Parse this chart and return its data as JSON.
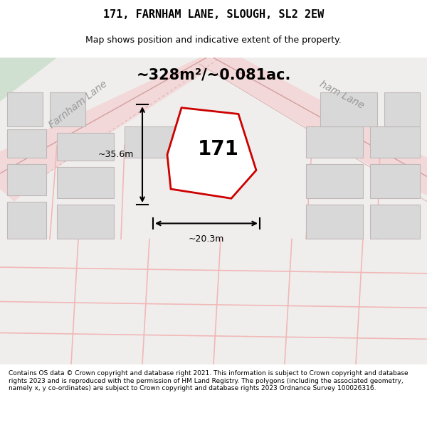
{
  "title_line1": "171, FARNHAM LANE, SLOUGH, SL2 2EW",
  "title_line2": "Map shows position and indicative extent of the property.",
  "area_text": "~328m²/~0.081ac.",
  "label_171": "171",
  "dim_width": "~20.3m",
  "dim_height": "~35.6m",
  "footer": "Contains OS data © Crown copyright and database right 2021. This information is subject to Crown copyright and database rights 2023 and is reproduced with the permission of HM Land Registry. The polygons (including the associated geometry, namely x, y co-ordinates) are subject to Crown copyright and database rights 2023 Ordnance Survey 100026316.",
  "bg_color": "#e8ede8",
  "map_bg": "#f0eeec",
  "road_color": "#f5c8c8",
  "road_line_color": "#d4a0a0",
  "plot_outline_color": "#cc0000",
  "plot_fill_color": "#ffffff",
  "dim_line_color": "#000000",
  "building_color": "#d0d0d0",
  "text_color": "#000000",
  "road_label_color": "#888888"
}
